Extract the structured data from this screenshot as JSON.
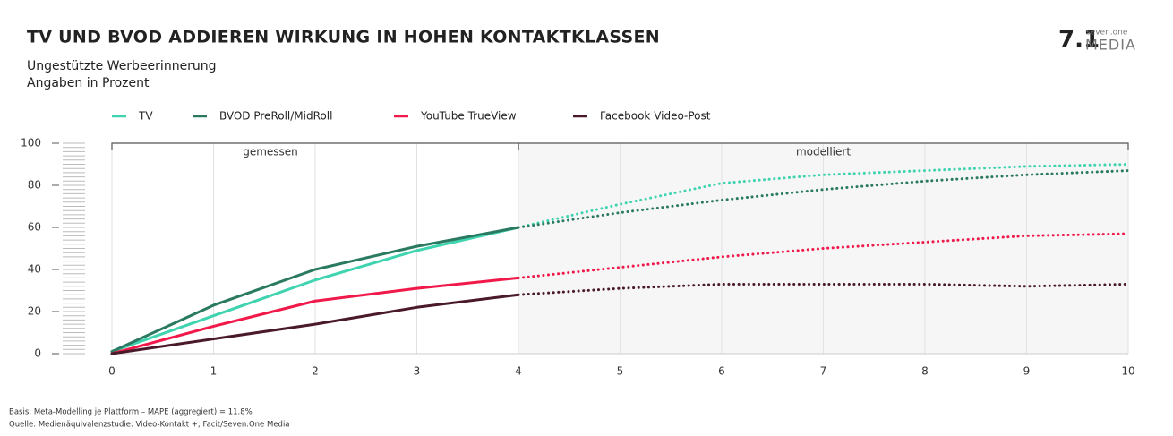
{
  "chart_data": {
    "type": "line",
    "title": "TV UND BVOD ADDIEREN WIRKUNG IN HOHEN KONTAKTKLASSEN",
    "subtitle": [
      "Ungestützte Werbeerinnerung",
      "Angaben in Prozent"
    ],
    "logo": [
      "seven.one",
      "MEDIA"
    ],
    "footnotes": [
      "Basis: Meta-Modelling je Plattform – MAPE (aggregiert) = 11.8%",
      "Quelle: Medienäquivalenzstudie: Video-Kontakt +; Facit/Seven.One Media"
    ],
    "x": [
      0,
      1,
      2,
      3,
      4,
      5,
      6,
      7,
      8,
      9,
      10
    ],
    "xlim": [
      0,
      10
    ],
    "xticks": [
      0,
      1,
      2,
      3,
      4,
      5,
      6,
      7,
      8,
      9,
      10
    ],
    "ylim": [
      0,
      100
    ],
    "yticks": [
      0,
      20,
      40,
      60,
      80,
      100
    ],
    "regions": [
      {
        "label": "gemessen",
        "range": [
          0,
          4
        ]
      },
      {
        "label": "modelliert",
        "range": [
          4,
          10
        ]
      }
    ],
    "series": [
      {
        "name": "TV",
        "color": "#3fd3b0",
        "values": [
          1,
          18,
          35,
          49,
          60,
          71,
          81,
          85,
          87,
          89,
          90
        ]
      },
      {
        "name": "BVOD PreRoll/MidRoll",
        "color": "#2a7a62",
        "values": [
          1,
          23,
          40,
          51,
          60,
          67,
          73,
          78,
          82,
          85,
          87
        ]
      },
      {
        "name": "YouTube TrueView",
        "color": "#f0194a",
        "values": [
          0,
          13,
          25,
          31,
          36,
          41,
          46,
          50,
          53,
          56,
          57
        ]
      },
      {
        "name": "Facebook Video-Post",
        "color": "#4a1a2a",
        "values": [
          0,
          7,
          14,
          22,
          28,
          31,
          33,
          33,
          33,
          32,
          33
        ]
      }
    ]
  }
}
